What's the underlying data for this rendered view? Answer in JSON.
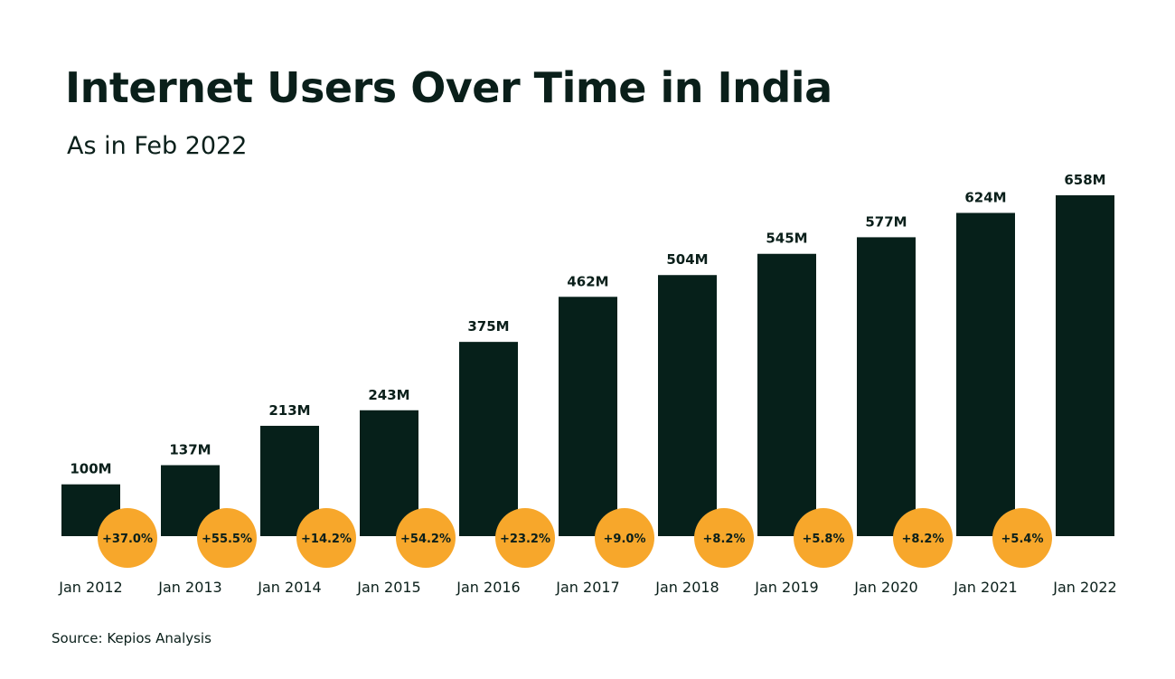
{
  "title": "Internet Users Over Time in India",
  "subtitle": "As in Feb 2022",
  "source": "Source: Kepios Analysis",
  "colors": {
    "bar": "#06201a",
    "badge": "#f7a72b",
    "text": "#0a1f1a"
  },
  "chart_data": {
    "type": "bar",
    "title": "Internet Users Over Time in India",
    "subtitle": "As in Feb 2022",
    "xlabel": "",
    "ylabel": "",
    "unit": "M",
    "grid": false,
    "ylim": [
      0,
      658
    ],
    "categories": [
      "Jan 2012",
      "Jan 2013",
      "Jan 2014",
      "Jan 2015",
      "Jan 2016",
      "Jan 2017",
      "Jan 2018",
      "Jan 2019",
      "Jan 2020",
      "Jan 2021",
      "Jan 2022"
    ],
    "values": [
      100,
      137,
      213,
      243,
      375,
      462,
      504,
      545,
      577,
      624,
      658
    ],
    "value_labels": [
      "100M",
      "137M",
      "213M",
      "243M",
      "375M",
      "462M",
      "504M",
      "545M",
      "577M",
      "624M",
      "658M"
    ],
    "growth": [
      "+37.0%",
      "+55.5%",
      "+14.2%",
      "+54.2%",
      "+23.2%",
      "+9.0%",
      "+8.2%",
      "+5.8%",
      "+8.2%",
      "+5.4%"
    ]
  }
}
